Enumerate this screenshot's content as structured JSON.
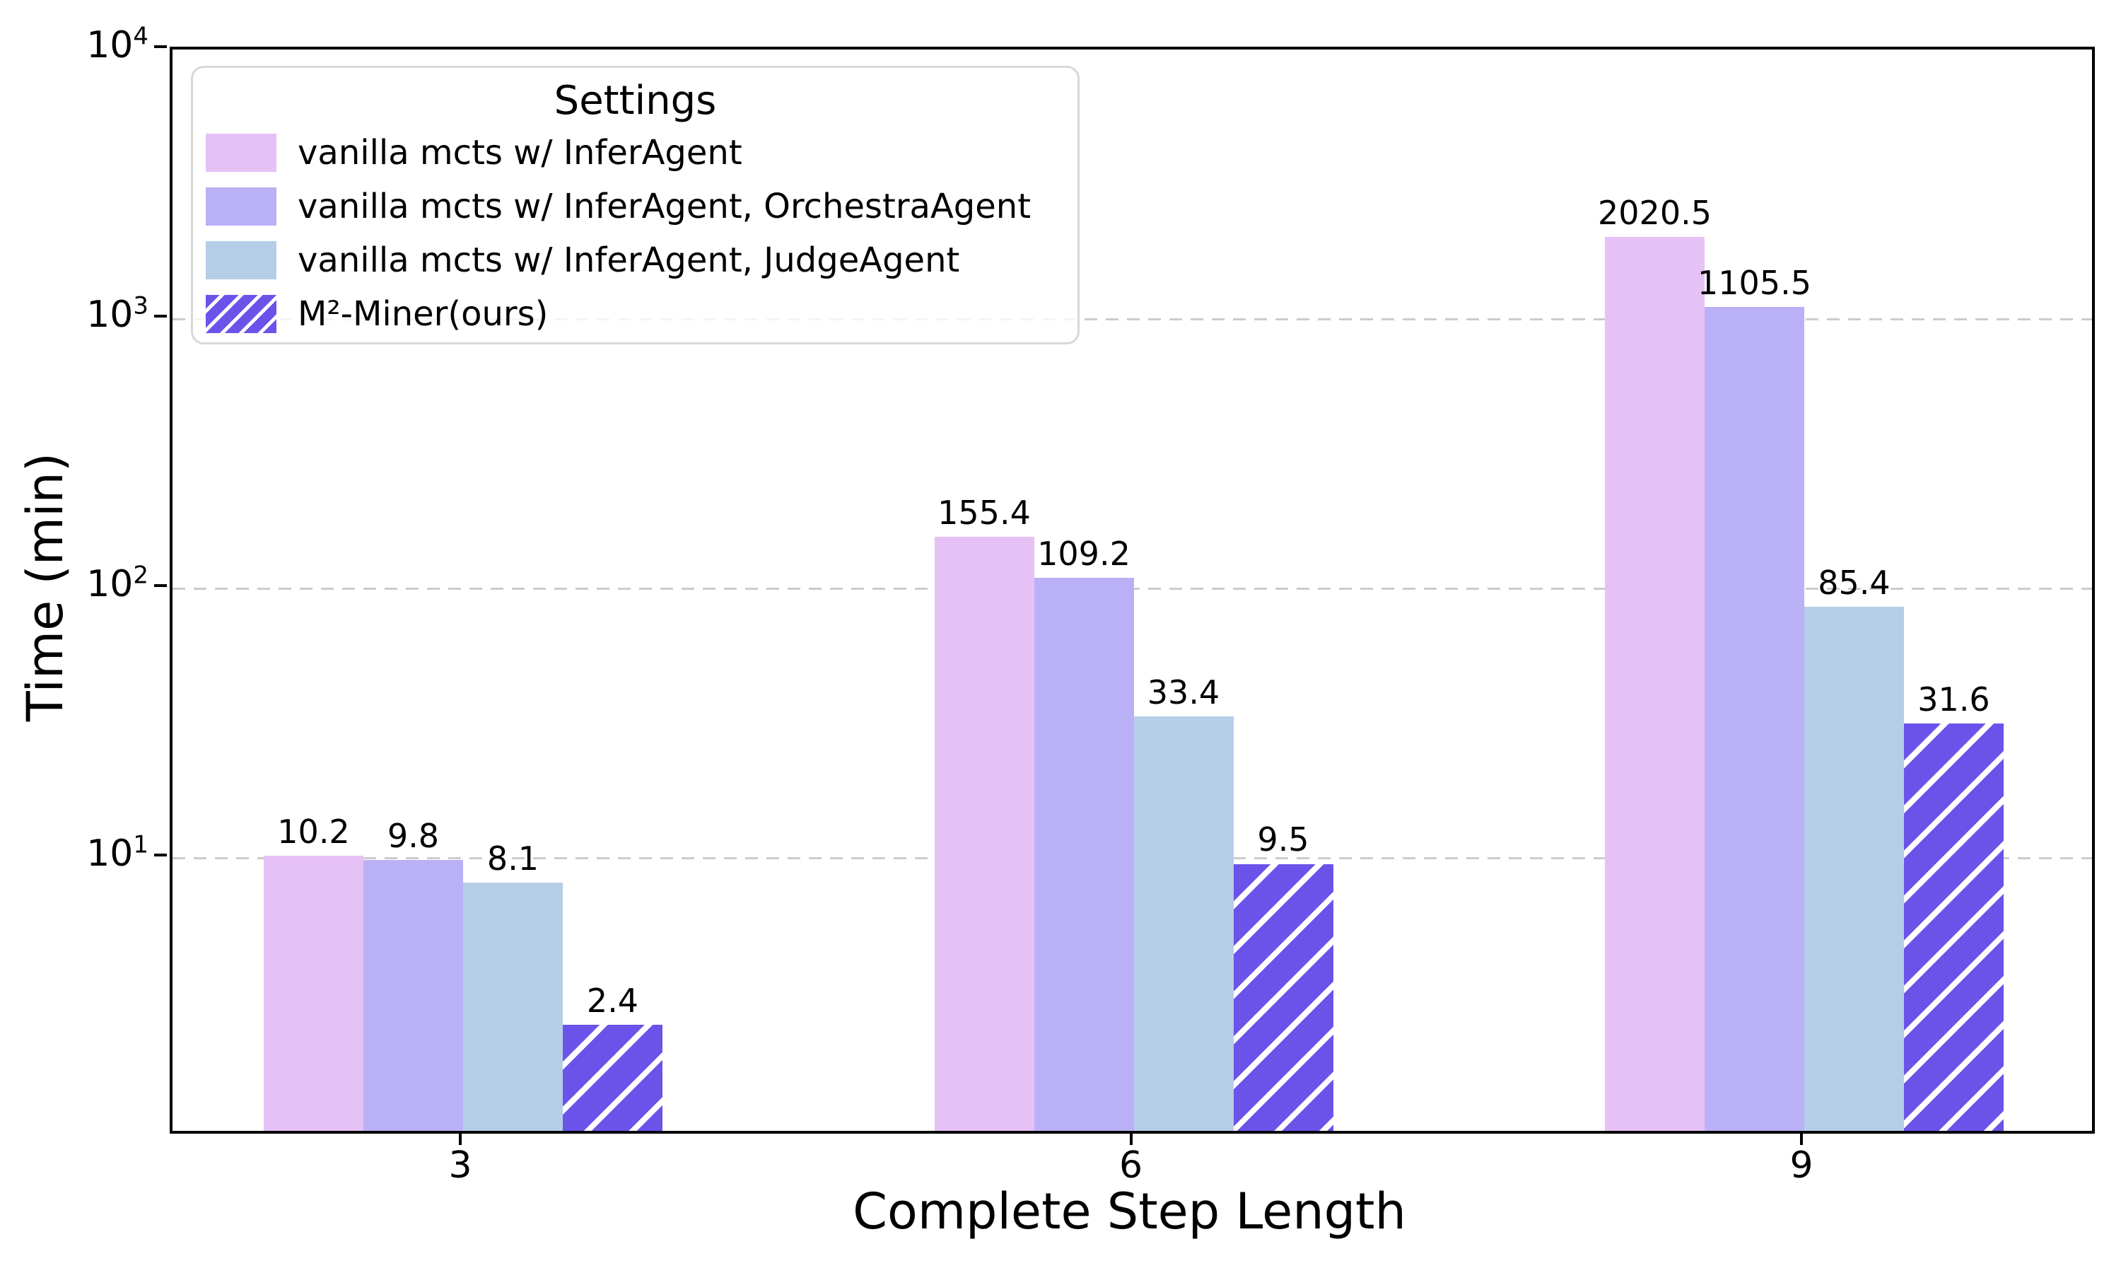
{
  "figure": {
    "xlabel": "Complete Step Length",
    "ylabel": "Time (min)",
    "legend_title": "Settings"
  },
  "chart_data": {
    "type": "bar",
    "title": "",
    "xlabel": "Complete Step Length",
    "ylabel": "Time (min)",
    "yscale": "log",
    "ylim": [
      0.97,
      10000
    ],
    "categories": [
      "3",
      "6",
      "9"
    ],
    "series": [
      {
        "name": "vanilla mcts w/ InferAgent",
        "color": "#E5C1F5",
        "hatch": false,
        "values": [
          10.2,
          155.4,
          2020.5
        ]
      },
      {
        "name": "vanilla mcts w/ InferAgent, OrchestraAgent",
        "color": "#BAB0F6",
        "hatch": false,
        "values": [
          9.8,
          109.2,
          1105.5
        ]
      },
      {
        "name": "vanilla mcts w/ InferAgent, JudgeAgent",
        "color": "#B4CEE8",
        "hatch": false,
        "values": [
          8.1,
          33.4,
          85.4
        ]
      },
      {
        "name": "M²-Miner(ours)",
        "color": "#6B53EA",
        "hatch": true,
        "hatch_color": "#ffffff",
        "values": [
          2.4,
          9.5,
          31.6
        ]
      }
    ],
    "value_labels": [
      "10.2",
      "9.8",
      "8.1",
      "2.4",
      "155.4",
      "109.2",
      "33.4",
      "9.5",
      "2020.5",
      "1105.5",
      "85.4",
      "31.6"
    ],
    "yticks": [
      {
        "base": "10",
        "exp": "4"
      },
      {
        "base": "10",
        "exp": "3"
      },
      {
        "base": "10",
        "exp": "2"
      },
      {
        "base": "10",
        "exp": "1"
      }
    ],
    "legend": {
      "title": "Settings",
      "position": "upper left"
    },
    "grid": {
      "axis": "y",
      "style": "dashed",
      "color": "#cccccc"
    },
    "spine_color": "#000000"
  }
}
